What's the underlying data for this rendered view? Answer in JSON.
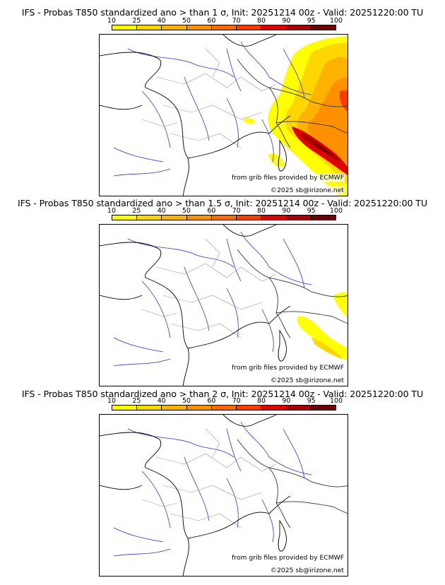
{
  "colorbar": {
    "ticks": [
      "10",
      "25",
      "40",
      "50",
      "60",
      "70",
      "80",
      "90",
      "95",
      "100"
    ],
    "colors": [
      "#ffff00",
      "#ffd700",
      "#ffb300",
      "#ff9000",
      "#ff6a00",
      "#ff3c00",
      "#e00000",
      "#a80000",
      "#700000"
    ]
  },
  "panels": [
    {
      "title": "IFS - Probas T850  standardized ano > than 1 σ, Init: 20251214 00z - Valid: 20251220:00 TU",
      "sigma": 1,
      "credit_grib": "from grib files provided by ECMWF",
      "credit_copy": "©2025 sb@irizone.net"
    },
    {
      "title": "IFS - Probas T850  standardized ano > than 1.5 σ, Init: 20251214 00z - Valid: 20251220:00 TU",
      "sigma": 1.5,
      "credit_grib": "from grib files provided by ECMWF",
      "credit_copy": "©2025 sb@irizone.net"
    },
    {
      "title": "IFS - Probas T850  standardized ano > than 2 σ, Init: 20251214 00z - Valid: 20251220:00 TU",
      "sigma": 2,
      "credit_grib": "from grib files provided by ECMWF",
      "credit_copy": "©2025 sb@irizone.net"
    }
  ]
}
